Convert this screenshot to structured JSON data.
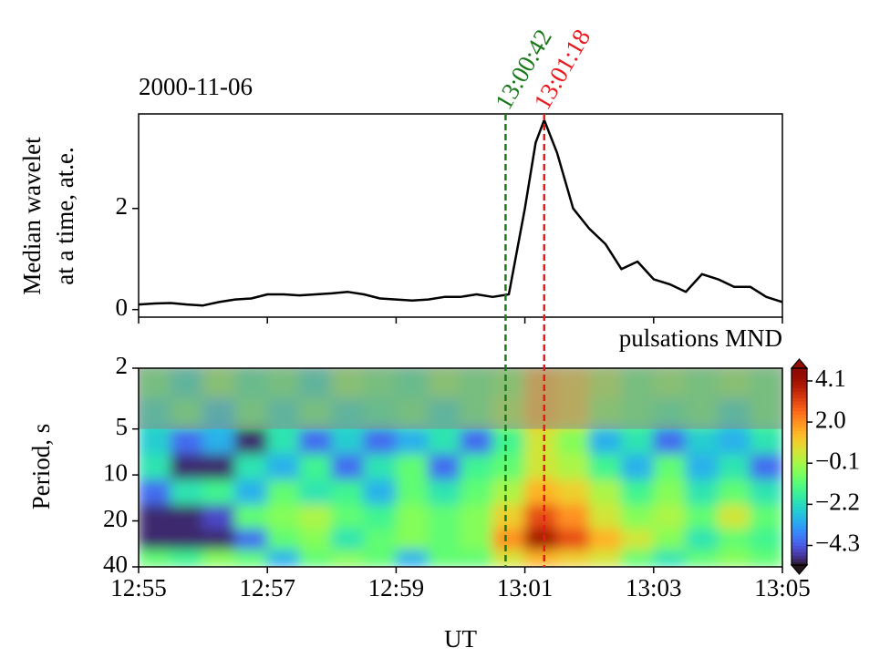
{
  "chart_data": [
    {
      "type": "line",
      "title": "2000-11-06",
      "ylabel": [
        "Median wavelet",
        "at a time, at.e."
      ],
      "x": [
        "12:55:00",
        "12:55:15",
        "12:55:30",
        "12:55:45",
        "12:56:00",
        "12:56:15",
        "12:56:30",
        "12:56:45",
        "12:57:00",
        "12:57:15",
        "12:57:30",
        "12:57:45",
        "12:58:00",
        "12:58:15",
        "12:58:30",
        "12:58:45",
        "12:59:00",
        "12:59:15",
        "12:59:30",
        "12:59:45",
        "13:00:00",
        "13:00:15",
        "13:00:30",
        "13:00:45",
        "13:01:00",
        "13:01:10",
        "13:01:18",
        "13:01:30",
        "13:01:45",
        "13:02:00",
        "13:02:15",
        "13:02:30",
        "13:02:45",
        "13:03:00",
        "13:03:15",
        "13:03:30",
        "13:03:45",
        "13:04:00",
        "13:04:15",
        "13:04:30",
        "13:04:45",
        "13:05:00"
      ],
      "values": [
        0.1,
        0.12,
        0.13,
        0.1,
        0.08,
        0.15,
        0.2,
        0.22,
        0.3,
        0.3,
        0.28,
        0.3,
        0.32,
        0.35,
        0.3,
        0.22,
        0.2,
        0.18,
        0.2,
        0.25,
        0.25,
        0.3,
        0.25,
        0.3,
        2.0,
        3.3,
        3.75,
        3.1,
        2.0,
        1.6,
        1.3,
        0.8,
        0.95,
        0.6,
        0.5,
        0.35,
        0.7,
        0.6,
        0.45,
        0.45,
        0.25,
        0.15
      ],
      "color": "#000000",
      "xlim": [
        "12:55",
        "13:05"
      ],
      "ylim": [
        -0.15,
        3.87
      ],
      "yticks": [
        0,
        2
      ],
      "vlines": [
        {
          "x": "13:00:42",
          "color": "#1a7a1a"
        },
        {
          "x": "13:01:18",
          "color": "#e8191c"
        }
      ]
    },
    {
      "type": "contour",
      "title": "pulsations MND",
      "ylabel": "Period, s",
      "xlabel": "UT",
      "xlim": [
        "12:55",
        "13:05"
      ],
      "xticks": [
        "12:55",
        "12:57",
        "12:59",
        "13:01",
        "13:03",
        "13:05"
      ],
      "ylim": [
        2,
        40
      ],
      "yticks": [
        2,
        5,
        10,
        20,
        40
      ],
      "log_y": true,
      "y_inverted": true,
      "shaded_ylim": [
        2,
        5
      ],
      "x": [
        "12:55:15",
        "12:55:45",
        "12:56:15",
        "12:56:45",
        "12:57:15",
        "12:57:45",
        "12:58:15",
        "12:58:45",
        "12:59:15",
        "12:59:45",
        "13:00:15",
        "13:00:45",
        "13:01:15",
        "13:01:45",
        "13:02:15",
        "13:02:45",
        "13:03:15",
        "13:03:45",
        "13:04:15",
        "13:04:45"
      ],
      "y": [
        2.5,
        4,
        6,
        9,
        13,
        19,
        27,
        36
      ],
      "z": [
        [
          -1,
          -2,
          -0.5,
          -1.5,
          -1,
          -2,
          -0.5,
          -1,
          -1.5,
          -0.5,
          -1,
          -0.5,
          1.5,
          1,
          0,
          -1,
          -0.5,
          -1,
          -0.5,
          -1
        ],
        [
          -2,
          -1,
          -2.5,
          -1,
          -2,
          -1,
          -2,
          -1.5,
          -1,
          -2,
          -1,
          0,
          1.5,
          1,
          -0.5,
          -1,
          -1.5,
          -1,
          -2,
          -1
        ],
        [
          -2.5,
          -4,
          -3,
          -5,
          -2,
          -4,
          -2.5,
          -4,
          -3,
          -2,
          -4,
          -1.5,
          0.5,
          -0.5,
          -3,
          -2,
          -4,
          -2.5,
          -3,
          -2
        ],
        [
          -2,
          -5,
          -5,
          -2,
          -3,
          -1.5,
          -4,
          -2,
          -1,
          -4,
          -1.5,
          -1,
          0.5,
          0,
          -1.5,
          -3,
          -1,
          -3,
          -2,
          -4
        ],
        [
          -4,
          -2,
          -1.5,
          -3,
          -1,
          -2,
          -1.5,
          -3,
          -1,
          -2,
          -1,
          0,
          1.5,
          1,
          0,
          -1.5,
          -0.5,
          -2,
          -1,
          -2
        ],
        [
          -5,
          -5,
          -4.5,
          -1,
          -0.5,
          0,
          -1,
          -1.5,
          -0.5,
          -1,
          -0.5,
          1,
          3,
          2,
          0.5,
          -0.5,
          0,
          -1,
          0.5,
          -1
        ],
        [
          -5,
          -5,
          -5,
          -4,
          -1,
          -0.5,
          -2,
          -1,
          -0.5,
          -1,
          -0.5,
          2,
          4.1,
          3,
          1.5,
          0.5,
          -0.5,
          -2,
          -1,
          -1.5
        ],
        [
          -1,
          -1.5,
          -0.5,
          -1,
          -3,
          -1,
          -0.5,
          -1,
          -3,
          -1,
          -1,
          0.5,
          1.5,
          1,
          0.5,
          -1,
          -2,
          -1,
          -0.5,
          -1
        ]
      ],
      "colormap": "turbo",
      "clim": [
        -5.3,
        4.75
      ],
      "cticks": [
        4.1,
        {
          "value": 2,
          "label": "2.0"
        },
        {
          "value": -0.1,
          "label": "−0.1"
        },
        {
          "value": -2.2,
          "label": "−2.2"
        },
        {
          "value": -4.3,
          "label": "−4.3"
        }
      ]
    }
  ]
}
